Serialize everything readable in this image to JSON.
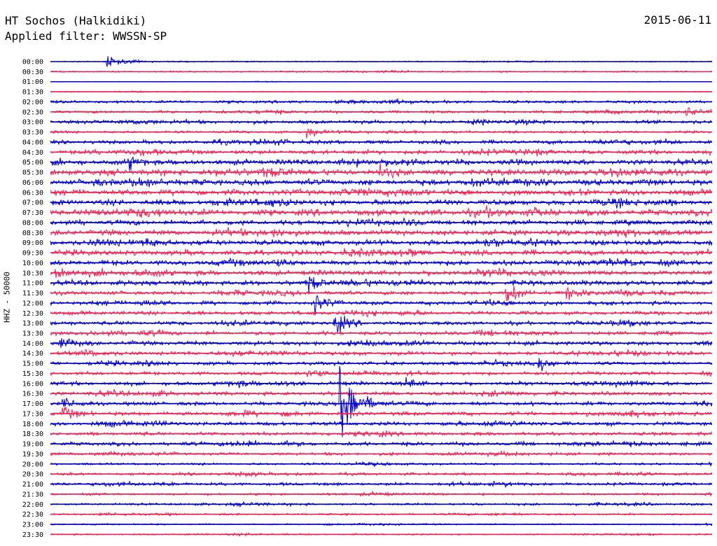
{
  "header": {
    "station": "HT Sochos (Halkidiki)",
    "filter": "Applied filter: WWSSN-SP",
    "date": "2015-06-11"
  },
  "chart_data": {
    "type": "helicorder",
    "channel_label": "HHZ - 50000",
    "row_labels": [
      "00:00",
      "00:30",
      "01:00",
      "01:30",
      "02:00",
      "02:30",
      "03:00",
      "03:30",
      "04:00",
      "04:30",
      "05:00",
      "05:30",
      "06:00",
      "06:30",
      "07:00",
      "07:30",
      "08:00",
      "08:30",
      "09:00",
      "09:30",
      "10:00",
      "10:30",
      "11:00",
      "11:30",
      "12:00",
      "12:30",
      "13:00",
      "13:30",
      "14:00",
      "14:30",
      "15:00",
      "15:30",
      "16:00",
      "16:30",
      "17:00",
      "17:30",
      "18:00",
      "18:30",
      "19:00",
      "19:30",
      "20:00",
      "20:30",
      "21:00",
      "21:30",
      "22:00",
      "22:30",
      "23:00",
      "23:30"
    ],
    "row_colors": [
      "#0000cc",
      "#ee2255"
    ],
    "row_noise": [
      0.6,
      0.8,
      0.3,
      0.5,
      1.5,
      1.4,
      1.8,
      1.2,
      2.0,
      2.2,
      2.8,
      3.2,
      3.0,
      3.0,
      2.8,
      3.2,
      2.6,
      2.8,
      2.8,
      2.8,
      2.6,
      2.6,
      2.6,
      2.0,
      2.0,
      2.0,
      2.0,
      2.0,
      2.2,
      2.0,
      1.8,
      1.8,
      2.0,
      2.0,
      2.0,
      2.0,
      2.0,
      1.8,
      2.0,
      1.5,
      1.2,
      1.4,
      1.6,
      1.2,
      1.2,
      1.0,
      0.8,
      0.8
    ],
    "events": [
      {
        "row": 0,
        "x": 0.085,
        "amp": 6
      },
      {
        "row": 5,
        "x": 0.96,
        "amp": 6
      },
      {
        "row": 7,
        "x": 0.39,
        "amp": 5
      },
      {
        "row": 10,
        "x": 0.12,
        "amp": 5
      },
      {
        "row": 11,
        "x": 0.5,
        "amp": 5
      },
      {
        "row": 21,
        "x": 0.01,
        "amp": 8
      },
      {
        "row": 22,
        "x": 0.39,
        "amp": 8
      },
      {
        "row": 23,
        "x": 0.69,
        "amp": 10
      },
      {
        "row": 23,
        "x": 0.78,
        "amp": 7
      },
      {
        "row": 24,
        "x": 0.4,
        "amp": 8
      },
      {
        "row": 26,
        "x": 0.43,
        "amp": 9
      },
      {
        "row": 28,
        "x": 0.015,
        "amp": 6
      },
      {
        "row": 29,
        "x": 0.05,
        "amp": 5
      },
      {
        "row": 30,
        "x": 0.74,
        "amp": 6
      },
      {
        "row": 31,
        "x": 0.39,
        "amp": 5
      },
      {
        "row": 32,
        "x": 0.54,
        "amp": 5
      },
      {
        "row": 34,
        "x": 0.44,
        "amp": 40
      },
      {
        "row": 34,
        "x": 0.02,
        "amp": 5
      },
      {
        "row": 35,
        "x": 0.02,
        "amp": 6
      }
    ]
  }
}
